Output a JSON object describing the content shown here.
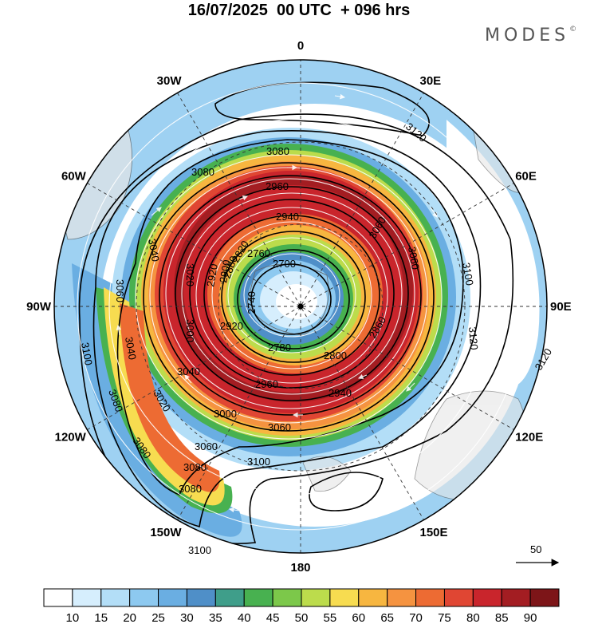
{
  "title": "16/07/2025  00 UTC  + 096 hrs",
  "logo": "MODES",
  "logo_mark": "©",
  "map": {
    "projection": "south-polar-stereographic",
    "longitude_labels": [
      {
        "name": "lon-0",
        "text": "0",
        "angle": 0
      },
      {
        "name": "lon-30e",
        "text": "30E",
        "angle": 30
      },
      {
        "name": "lon-60e",
        "text": "60E",
        "angle": 60
      },
      {
        "name": "lon-90e",
        "text": "90E",
        "angle": 90
      },
      {
        "name": "lon-120e",
        "text": "120E",
        "angle": 120
      },
      {
        "name": "lon-150e",
        "text": "150E",
        "angle": 150
      },
      {
        "name": "lon-180",
        "text": "180",
        "angle": 180
      },
      {
        "name": "lon-150w",
        "text": "150W",
        "angle": 210
      },
      {
        "name": "lon-120w",
        "text": "120W",
        "angle": 240
      },
      {
        "name": "lon-90w",
        "text": "90W",
        "angle": 270
      },
      {
        "name": "lon-60w",
        "text": "60W",
        "angle": 300
      },
      {
        "name": "lon-30w",
        "text": "30W",
        "angle": 330
      }
    ],
    "contour_labels": [
      "3120",
      "3120",
      "3100",
      "3120",
      "3080",
      "3060",
      "2960",
      "2940",
      "3080",
      "3040",
      "3060",
      "3020",
      "3000",
      "2920",
      "2900",
      "2880",
      "2760",
      "2740",
      "2780",
      "2800",
      "2860",
      "2940",
      "2960",
      "3000",
      "3060",
      "3100",
      "3020",
      "3040",
      "3040",
      "3080",
      "3060",
      "3080",
      "3080",
      "3100",
      "3100",
      "3060",
      "3080",
      "2920",
      "2820",
      "2700"
    ],
    "reference_vector": {
      "label": "50"
    }
  },
  "colorbar": {
    "levels": [
      "10",
      "15",
      "20",
      "25",
      "30",
      "35",
      "40",
      "45",
      "50",
      "55",
      "60",
      "65",
      "70",
      "75",
      "80",
      "85",
      "90"
    ],
    "colors": [
      "#ffffff",
      "#d6eefd",
      "#b3def7",
      "#8dc9f0",
      "#6aaee2",
      "#4f8fc8",
      "#3f9e8a",
      "#48b150",
      "#7cc84a",
      "#bcdc4c",
      "#f7dc50",
      "#f7b640",
      "#f59340",
      "#ed6b33",
      "#e04633",
      "#c9252c",
      "#a31d22",
      "#7d1518"
    ]
  }
}
